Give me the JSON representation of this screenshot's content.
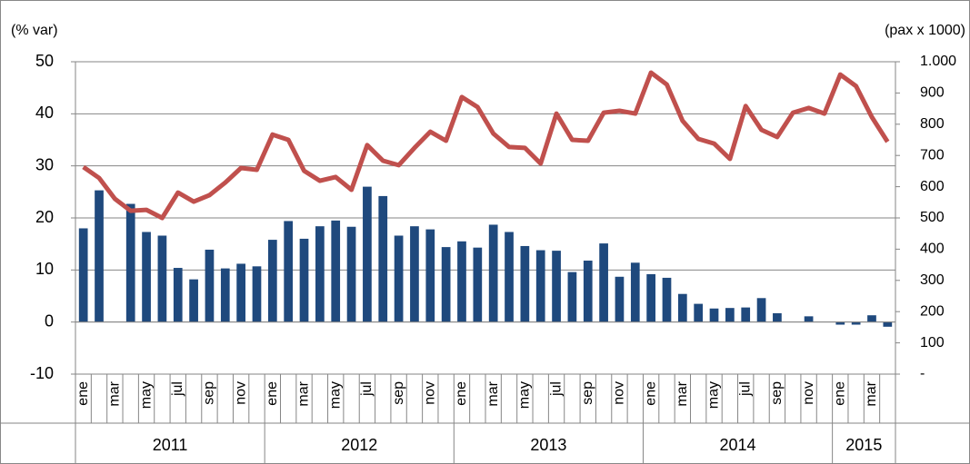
{
  "chart_data": {
    "type": "bar-line",
    "y_label": "(% var)",
    "y2_label": "(pax x 1000)",
    "category_groups": [
      {
        "name": "2011",
        "categories": [
          "ene",
          null,
          "mar",
          null,
          "may",
          null,
          "jul",
          null,
          "sep",
          null,
          "nov",
          null
        ]
      },
      {
        "name": "2012",
        "categories": [
          "ene",
          null,
          "mar",
          null,
          "may",
          null,
          "jul",
          null,
          "sep",
          null,
          "nov",
          null
        ]
      },
      {
        "name": "2013",
        "categories": [
          "ene",
          null,
          "mar",
          null,
          "may",
          null,
          "jul",
          null,
          "sep",
          null,
          "nov",
          null
        ]
      },
      {
        "name": "2014",
        "categories": [
          "ene",
          null,
          "mar",
          null,
          "may",
          null,
          "jul",
          null,
          "sep",
          null,
          "nov",
          null
        ]
      },
      {
        "name": "2015",
        "categories": [
          "ene",
          null,
          "mar",
          null
        ]
      }
    ],
    "series": [
      {
        "type": "bar",
        "color": "#1f497d",
        "values": [
          18,
          25.3,
          0,
          22.7,
          17.3,
          16.6,
          10.4,
          8.2,
          13.9,
          10.3,
          11.2,
          10.7,
          15.8,
          19.4,
          16,
          18.4,
          19.5,
          18.3,
          26,
          24.2,
          16.6,
          18.4,
          17.8,
          14.4,
          15.5,
          14.3,
          18.7,
          17.3,
          14.6,
          13.8,
          13.7,
          9.6,
          11.8,
          15.1,
          8.7,
          11.4,
          9.2,
          8.5,
          5.4,
          3.5,
          2.6,
          2.7,
          2.8,
          4.6,
          1.7,
          0,
          1.1,
          0,
          -0.5,
          -0.5,
          1.3,
          -0.9
        ]
      },
      {
        "type": "line",
        "axis": "y2",
        "color": "#c0504d",
        "values": [
          663,
          628,
          561,
          523,
          526,
          500,
          581,
          552,
          573,
          613,
          660,
          654,
          767,
          750,
          651,
          619,
          631,
          590,
          733,
          683,
          669,
          724,
          776,
          747,
          887,
          855,
          770,
          727,
          724,
          674,
          834,
          750,
          747,
          837,
          843,
          834,
          965,
          927,
          811,
          753,
          738,
          689,
          858,
          782,
          759,
          837,
          852,
          834,
          959,
          922,
          823,
          744
        ]
      }
    ],
    "ylim": [
      -10,
      50
    ],
    "yticks": [
      -10,
      0,
      10,
      20,
      30,
      40,
      50
    ],
    "y2lim": [
      0,
      1000
    ],
    "y2ticks": [
      {
        "value": 0,
        "label": "-"
      },
      100,
      200,
      300,
      400,
      500,
      600,
      700,
      800,
      900,
      {
        "value": 1000,
        "label": "1.000"
      }
    ],
    "grid": true
  }
}
